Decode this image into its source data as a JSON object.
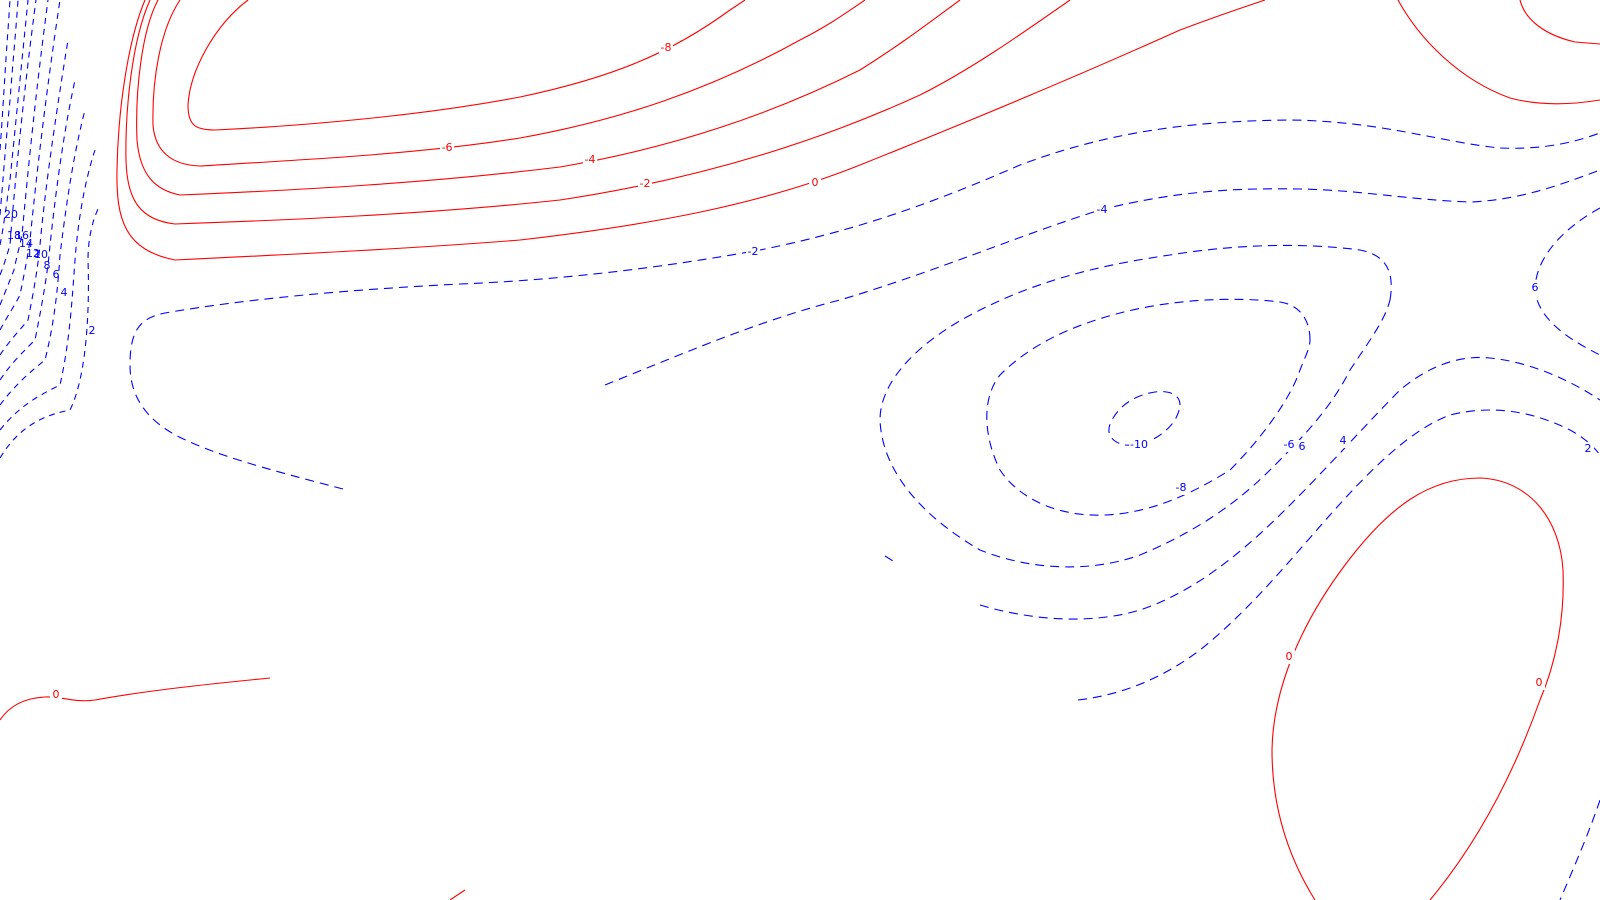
{
  "colors": {
    "negative_contours": "#ff0000",
    "positive_contours": "#0000ff",
    "background": "#ffffff"
  },
  "labels": {
    "red": [
      "-8",
      "-6",
      "-4",
      "-2",
      "0",
      "0",
      "0",
      "0"
    ],
    "blue_center": [
      "-2",
      "-4",
      "-6",
      "-8",
      "-10",
      "6",
      "4",
      "2",
      "6"
    ],
    "blue_left": [
      "20",
      "18",
      "16",
      "14",
      "12",
      "10",
      "8",
      "6",
      "4",
      "2"
    ]
  }
}
